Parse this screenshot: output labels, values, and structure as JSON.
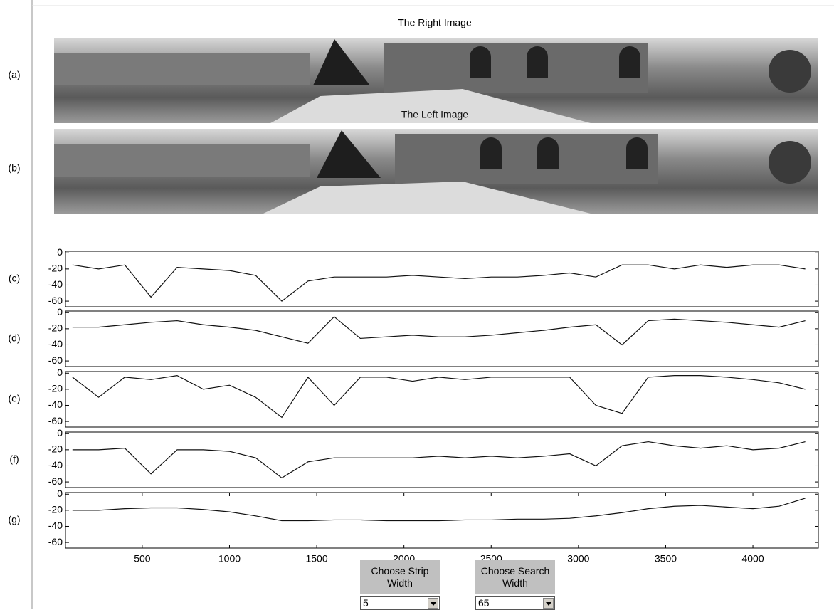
{
  "images": [
    {
      "label": "(a)",
      "title": "The Right Image"
    },
    {
      "label": "(b)",
      "title": "The Left Image"
    }
  ],
  "controls": [
    {
      "label": "Choose Strip Width",
      "value": "5"
    },
    {
      "label": "Choose Search Width",
      "value": "65"
    }
  ],
  "chart_data": [
    {
      "type": "line",
      "label": "(c)",
      "color": "#111111",
      "xlim": [
        60,
        4375
      ],
      "ylim": [
        -67,
        2
      ],
      "yticks": [
        0,
        -20,
        -40,
        -60
      ],
      "x": [
        100,
        250,
        400,
        550,
        700,
        850,
        1000,
        1150,
        1300,
        1450,
        1600,
        1750,
        1900,
        2050,
        2200,
        2350,
        2500,
        2650,
        2800,
        2950,
        3100,
        3250,
        3400,
        3550,
        3700,
        3850,
        4000,
        4150,
        4300
      ],
      "values": [
        -15,
        -20,
        -15,
        -55,
        -18,
        -20,
        -22,
        -28,
        -60,
        -35,
        -30,
        -30,
        -30,
        -28,
        -30,
        -32,
        -30,
        -30,
        -28,
        -25,
        -30,
        -15,
        -15,
        -20,
        -15,
        -18,
        -15,
        -15,
        -20
      ]
    },
    {
      "type": "line",
      "label": "(d)",
      "color": "#111111",
      "xlim": [
        60,
        4375
      ],
      "ylim": [
        -67,
        2
      ],
      "yticks": [
        0,
        -20,
        -40,
        -60
      ],
      "x": [
        100,
        250,
        400,
        550,
        700,
        850,
        1000,
        1150,
        1300,
        1450,
        1600,
        1750,
        1900,
        2050,
        2200,
        2350,
        2500,
        2650,
        2800,
        2950,
        3100,
        3250,
        3400,
        3550,
        3700,
        3850,
        4000,
        4150,
        4300
      ],
      "values": [
        -18,
        -18,
        -15,
        -12,
        -10,
        -15,
        -18,
        -22,
        -30,
        -38,
        -5,
        -32,
        -30,
        -28,
        -30,
        -30,
        -28,
        -25,
        -22,
        -18,
        -15,
        -40,
        -10,
        -8,
        -10,
        -12,
        -15,
        -18,
        -10
      ]
    },
    {
      "type": "line",
      "label": "(e)",
      "color": "#111111",
      "xlim": [
        60,
        4375
      ],
      "ylim": [
        -67,
        2
      ],
      "yticks": [
        0,
        -20,
        -40,
        -60
      ],
      "x": [
        100,
        250,
        400,
        550,
        700,
        850,
        1000,
        1150,
        1300,
        1450,
        1600,
        1750,
        1900,
        2050,
        2200,
        2350,
        2500,
        2650,
        2800,
        2950,
        3100,
        3250,
        3400,
        3550,
        3700,
        3850,
        4000,
        4150,
        4300
      ],
      "values": [
        -5,
        -30,
        -5,
        -8,
        -3,
        -20,
        -15,
        -30,
        -55,
        -5,
        -40,
        -5,
        -5,
        -10,
        -5,
        -8,
        -5,
        -5,
        -5,
        -5,
        -40,
        -50,
        -5,
        -3,
        -3,
        -5,
        -8,
        -12,
        -20
      ]
    },
    {
      "type": "line",
      "label": "(f)",
      "color": "#111111",
      "xlim": [
        60,
        4375
      ],
      "ylim": [
        -67,
        2
      ],
      "yticks": [
        0,
        -20,
        -40,
        -60
      ],
      "x": [
        100,
        250,
        400,
        550,
        700,
        850,
        1000,
        1150,
        1300,
        1450,
        1600,
        1750,
        1900,
        2050,
        2200,
        2350,
        2500,
        2650,
        2800,
        2950,
        3100,
        3250,
        3400,
        3550,
        3700,
        3850,
        4000,
        4150,
        4300
      ],
      "values": [
        -20,
        -20,
        -18,
        -50,
        -20,
        -20,
        -22,
        -30,
        -55,
        -35,
        -30,
        -30,
        -30,
        -30,
        -28,
        -30,
        -28,
        -30,
        -28,
        -25,
        -40,
        -15,
        -10,
        -15,
        -18,
        -15,
        -20,
        -18,
        -10
      ]
    },
    {
      "type": "line",
      "label": "(g)",
      "color": "#111111",
      "xlim": [
        60,
        4375
      ],
      "ylim": [
        -67,
        2
      ],
      "yticks": [
        0,
        -20,
        -40,
        -60
      ],
      "xticks": [
        500,
        1000,
        1500,
        2000,
        2500,
        3000,
        3500,
        4000
      ],
      "x": [
        100,
        250,
        400,
        550,
        700,
        850,
        1000,
        1150,
        1300,
        1450,
        1600,
        1750,
        1900,
        2050,
        2200,
        2350,
        2500,
        2650,
        2800,
        2950,
        3100,
        3250,
        3400,
        3550,
        3700,
        3850,
        4000,
        4150,
        4300
      ],
      "values": [
        -20,
        -20,
        -18,
        -17,
        -17,
        -19,
        -22,
        -27,
        -33,
        -33,
        -32,
        -32,
        -33,
        -33,
        -33,
        -32,
        -32,
        -31,
        -31,
        -30,
        -27,
        -23,
        -18,
        -15,
        -14,
        -16,
        -18,
        -15,
        -5
      ]
    }
  ]
}
